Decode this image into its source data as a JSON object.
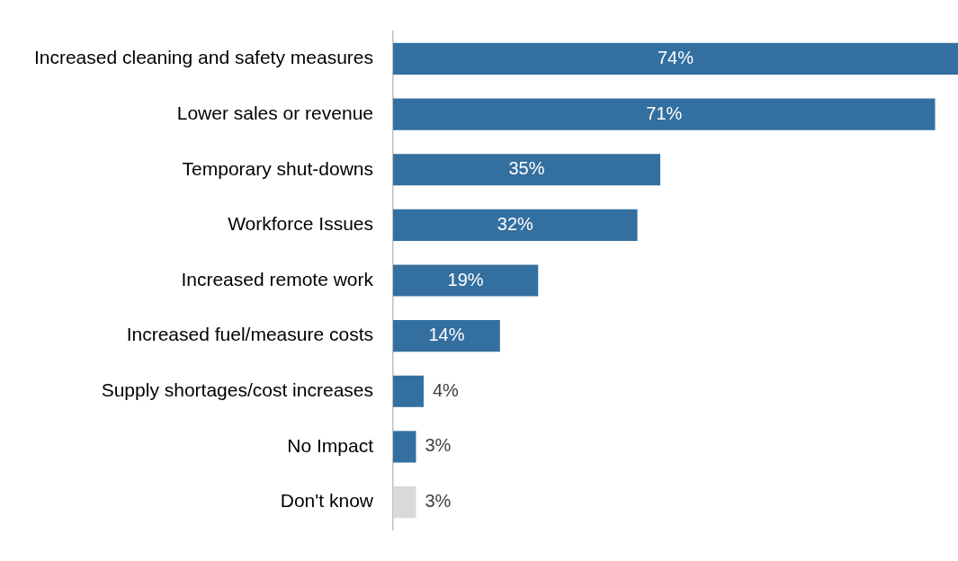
{
  "chart_data": {
    "type": "bar",
    "orientation": "horizontal",
    "categories": [
      "Increased cleaning and safety measures",
      "Lower sales or revenue",
      "Temporary shut-downs",
      "Workforce Issues",
      "Increased remote work",
      "Increased fuel/measure costs",
      "Supply shortages/cost increases",
      "No Impact",
      "Don't know"
    ],
    "values": [
      74,
      71,
      35,
      32,
      19,
      14,
      4,
      3,
      3
    ],
    "colors": [
      "#336f9f",
      "#336f9f",
      "#336f9f",
      "#336f9f",
      "#336f9f",
      "#336f9f",
      "#336f9f",
      "#336f9f",
      "#d9d9d9"
    ],
    "value_labels": [
      "74%",
      "71%",
      "35%",
      "32%",
      "19%",
      "14%",
      "4%",
      "3%",
      "3%"
    ],
    "grid": false,
    "legend": false
  }
}
